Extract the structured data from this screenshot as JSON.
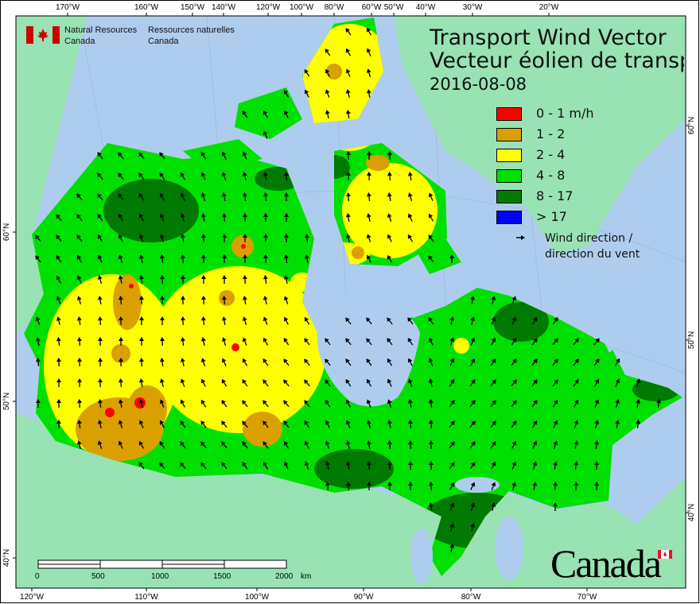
{
  "header": {
    "org_en": [
      "Natural Resources",
      "Canada"
    ],
    "org_fr": [
      "Ressources naturelles",
      "Canada"
    ],
    "title_en": "Transport Wind Vector",
    "title_fr": "Vecteur éolien de transport",
    "date": "2016-08-08"
  },
  "legend": {
    "items": [
      {
        "label": "0 - 1 m/h",
        "color": "#ff0000"
      },
      {
        "label": "1 - 2",
        "color": "#daa000"
      },
      {
        "label": "2 - 4",
        "color": "#ffff00"
      },
      {
        "label": "4 - 8",
        "color": "#00e000"
      },
      {
        "label": "8 - 17",
        "color": "#007a00"
      },
      {
        "label": "> 17",
        "color": "#0000ff"
      }
    ],
    "arrow_label": [
      "Wind direction /",
      "direction du vent"
    ],
    "arrow_icon": "wind-arrow-icon"
  },
  "axes": {
    "top": [
      "170°W",
      "160°W",
      "150°W",
      "140°W",
      "120°W",
      "100°W",
      "80°W",
      "60°W",
      "50°W",
      "40°W",
      "30°W",
      "20°W"
    ],
    "bottom": [
      "120°W",
      "110°W",
      "100°W",
      "90°W",
      "80°W",
      "70°W"
    ],
    "left": [
      "60°N",
      "50°N",
      "40°N"
    ],
    "right": [
      "60°N",
      "50°N",
      "40°N"
    ]
  },
  "scalebar": {
    "labels": [
      "0",
      "500",
      "1000",
      "1500",
      "2000"
    ],
    "unit": "km"
  },
  "wordmark": "Canada",
  "colors": {
    "ocean": "#aecdee",
    "foreign_land": "#98e2b4",
    "flag_red": "#cc0000"
  }
}
